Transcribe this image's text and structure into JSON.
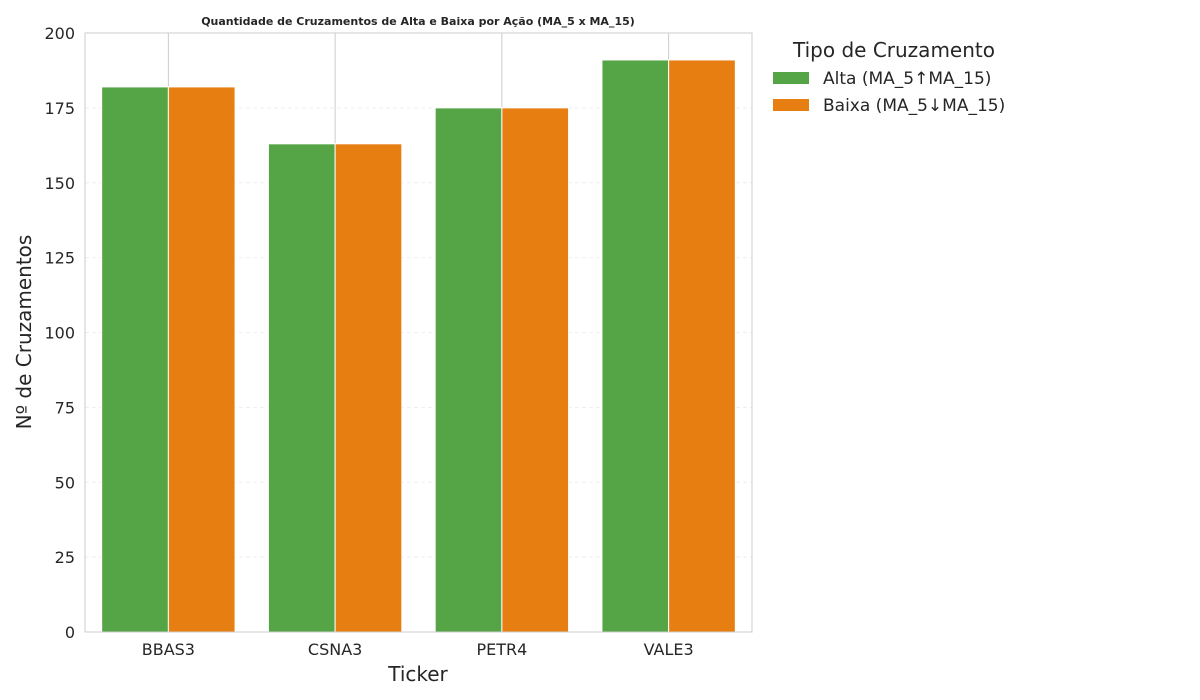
{
  "chart_data": {
    "type": "bar",
    "title": "Quantidade de Cruzamentos de Alta e Baixa por Ação (MA_5 x MA_15)",
    "xlabel": "Ticker",
    "ylabel": "Nº de Cruzamentos",
    "categories": [
      "BBAS3",
      "CSNA3",
      "PETR4",
      "VALE3"
    ],
    "series": [
      {
        "name": "Alta (MA_5↑MA_15)",
        "values": [
          182,
          163,
          175,
          191
        ],
        "color": "#55a547"
      },
      {
        "name": "Baixa (MA_5↓MA_15)",
        "values": [
          182,
          163,
          175,
          191
        ],
        "color": "#e77e11"
      }
    ],
    "ylim": [
      0,
      200
    ],
    "yticks": [
      0,
      25,
      50,
      75,
      100,
      125,
      150,
      175,
      200
    ],
    "grid": true,
    "legend": {
      "title": "Tipo de Cruzamento",
      "placement": "outside-top-right"
    }
  }
}
